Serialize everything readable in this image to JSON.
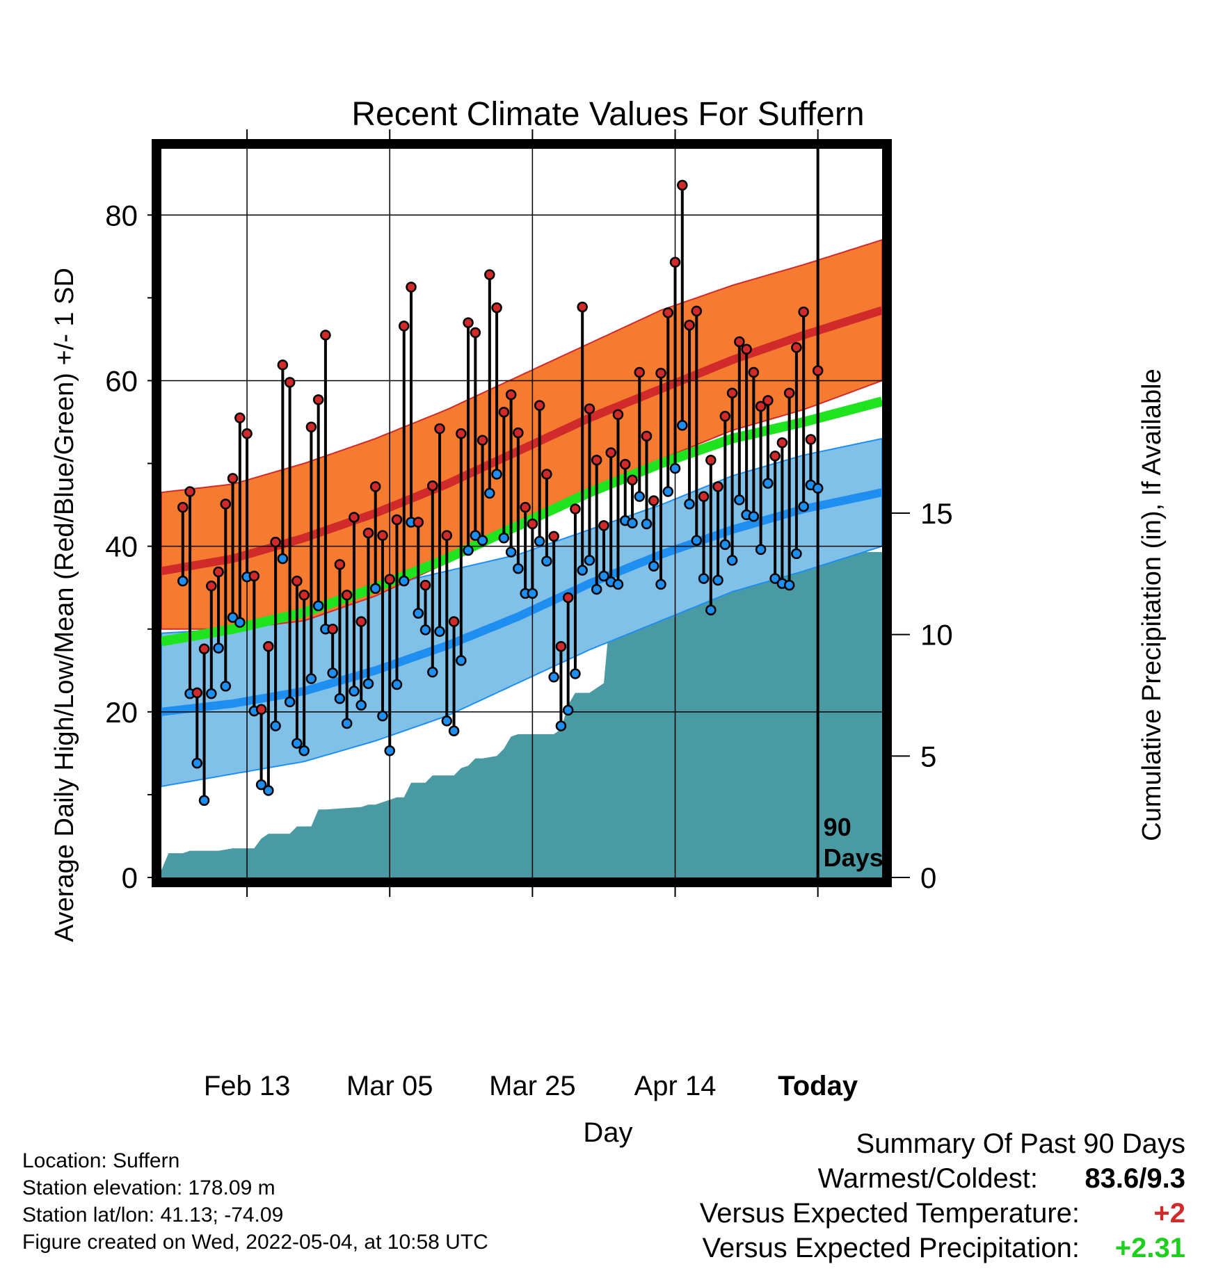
{
  "chart_data": {
    "type": "line",
    "title": "Recent Climate Values For Suffern",
    "xlabel": "Day",
    "ylabel": "Average Daily High/Low/Mean (Red/Blue/Green) +/- 1 SD",
    "y2label": "Cumulative Precipitation (in), If Available",
    "x_ticks": [
      {
        "day": 12,
        "label": "Feb 13"
      },
      {
        "day": 32,
        "label": "Mar 05"
      },
      {
        "day": 52,
        "label": "Mar 25"
      },
      {
        "day": 72,
        "label": "Apr 14"
      },
      {
        "day": 92,
        "label": "Today"
      }
    ],
    "xlim": [
      0,
      101
    ],
    "ylim": [
      0,
      88
    ],
    "y_ticks": [
      0,
      20,
      40,
      60,
      80
    ],
    "y2lim": [
      0,
      30
    ],
    "y2_ticks": [
      0,
      5,
      10,
      15
    ],
    "grid": true,
    "today_day": 92,
    "today_annotation": [
      "90",
      "Days"
    ],
    "normal_days": [
      0,
      10,
      20,
      30,
      40,
      50,
      60,
      70,
      80,
      90,
      101
    ],
    "normal_high_mean": [
      37.0,
      38.5,
      41.0,
      44.0,
      47.5,
      51.5,
      55.5,
      59.0,
      62.5,
      65.5,
      68.5
    ],
    "normal_high_upper": [
      46.5,
      47.5,
      50.0,
      53.0,
      56.5,
      60.5,
      64.5,
      68.5,
      71.5,
      74.0,
      77.0
    ],
    "normal_high_lower": [
      30.0,
      30.0,
      31.0,
      34.0,
      38.0,
      42.5,
      46.5,
      50.5,
      54.0,
      56.5,
      60.0
    ],
    "normal_mean_temp": [
      28.5,
      30.0,
      32.0,
      35.0,
      38.5,
      42.5,
      46.5,
      50.0,
      53.0,
      55.0,
      57.5
    ],
    "normal_low_mean": [
      20.0,
      21.0,
      22.5,
      25.0,
      28.0,
      31.5,
      35.5,
      39.0,
      42.0,
      44.5,
      46.5
    ],
    "normal_low_upper": [
      29.5,
      30.0,
      32.0,
      35.0,
      37.0,
      39.0,
      42.0,
      45.0,
      48.5,
      51.0,
      53.0
    ],
    "normal_low_lower": [
      11.0,
      12.5,
      14.0,
      16.5,
      19.5,
      23.5,
      27.5,
      31.0,
      34.5,
      37.0,
      40.0
    ],
    "daily_high": [
      44.7,
      46.6,
      22.3,
      27.6,
      35.2,
      36.9,
      45.1,
      48.2,
      55.5,
      53.6,
      36.4,
      20.3,
      27.9,
      40.5,
      61.9,
      59.8,
      35.8,
      34.1,
      54.4,
      57.7,
      65.5,
      30.0,
      37.8,
      34.1,
      43.5,
      30.9,
      41.6,
      47.2,
      41.3,
      36.0,
      43.2,
      66.6,
      71.3,
      42.9,
      35.3,
      47.3,
      54.2,
      41.3,
      30.9,
      53.6,
      67.0,
      65.8,
      52.8,
      72.8,
      68.8,
      56.2,
      58.3,
      53.7,
      44.7,
      42.7,
      57.0,
      48.7,
      41.2,
      27.9,
      33.8,
      44.5,
      68.9,
      56.6,
      50.4,
      42.5,
      51.3,
      55.9,
      49.9,
      48.0,
      61.0,
      53.3,
      45.5,
      60.9,
      68.2,
      74.3,
      83.6,
      66.7,
      68.4,
      46.0,
      50.4,
      47.2,
      55.7,
      58.5,
      64.7,
      63.8,
      61.0,
      56.9,
      57.6,
      50.9,
      52.5,
      58.5,
      64.0,
      68.3,
      52.9,
      61.2
    ],
    "daily_low": [
      35.8,
      22.2,
      13.8,
      9.3,
      22.2,
      27.7,
      23.1,
      31.4,
      30.8,
      36.3,
      20.1,
      11.2,
      10.5,
      18.3,
      38.5,
      21.2,
      16.2,
      15.3,
      24.0,
      32.8,
      30.0,
      24.7,
      21.6,
      18.6,
      22.5,
      20.8,
      23.4,
      34.9,
      19.5,
      15.3,
      23.3,
      35.8,
      42.9,
      31.9,
      29.9,
      24.8,
      29.7,
      18.9,
      17.7,
      26.2,
      39.5,
      41.3,
      40.7,
      46.4,
      48.7,
      41.0,
      39.3,
      37.3,
      34.3,
      34.3,
      40.6,
      38.2,
      24.2,
      18.3,
      20.2,
      24.6,
      37.1,
      38.3,
      34.8,
      36.4,
      35.7,
      35.4,
      43.1,
      42.8,
      46.0,
      42.7,
      37.6,
      35.4,
      46.6,
      49.4,
      54.6,
      45.1,
      40.7,
      36.1,
      32.3,
      35.9,
      40.2,
      38.3,
      45.6,
      43.8,
      43.6,
      39.6,
      47.6,
      36.1,
      35.5,
      35.3,
      39.1,
      44.8,
      47.4,
      47.0
    ],
    "precip_days": [
      0,
      1,
      3,
      4,
      8,
      10,
      13,
      14,
      15,
      16,
      18,
      19,
      21,
      22,
      23,
      28,
      29,
      30,
      31,
      33,
      34,
      35,
      37,
      38,
      39,
      41,
      42,
      43,
      44,
      45,
      47,
      48,
      49,
      50,
      51,
      55,
      56,
      57,
      58,
      59,
      60,
      62,
      63,
      64,
      65,
      70,
      71,
      73,
      74,
      75,
      76,
      77,
      87,
      88,
      89,
      101
    ],
    "precip_cum": [
      0.3,
      1.0,
      1.0,
      1.1,
      1.1,
      1.2,
      1.2,
      1.6,
      1.8,
      1.8,
      1.8,
      2.1,
      2.1,
      2.8,
      2.8,
      2.9,
      3.0,
      3.0,
      3.1,
      3.3,
      3.3,
      3.9,
      3.9,
      4.2,
      4.2,
      4.2,
      4.5,
      4.6,
      4.9,
      4.9,
      5.0,
      5.3,
      5.8,
      5.9,
      5.9,
      5.9,
      6.1,
      7.1,
      7.6,
      7.6,
      7.6,
      8.0,
      11.2,
      11.3,
      11.3,
      11.5,
      11.5,
      11.6,
      12.9,
      12.9,
      13.0,
      13.0,
      13.0,
      13.3,
      13.4,
      13.4
    ]
  },
  "info": {
    "location": "Location: Suffern",
    "elevation": "Station elevation: 178.09 m",
    "latlon": "Station lat/lon: 41.13; -74.09",
    "created": "Figure created on Wed, 2022-05-04, at 10:58 UTC"
  },
  "summary": {
    "title": "Summary Of Past 90 Days",
    "warmest_label": "Warmest/Coldest:",
    "warmest_value": "83.6/9.3",
    "temp_label": "Versus Expected Temperature:",
    "temp_value": "+2",
    "precip_label": "Versus Expected Precipitation:",
    "precip_value": "+2.31"
  },
  "colors": {
    "high_band": "#f47b30",
    "high_line": "#d12a2a",
    "low_band": "#82c1e7",
    "low_line": "#1e8ff0",
    "mean_line": "#1ee31e",
    "precip": "#4a9aa4",
    "high_dot": "#d12a2a",
    "low_dot": "#1e8ff0",
    "temp_value": "#d12a2a",
    "precip_value": "#1ecf1e"
  }
}
